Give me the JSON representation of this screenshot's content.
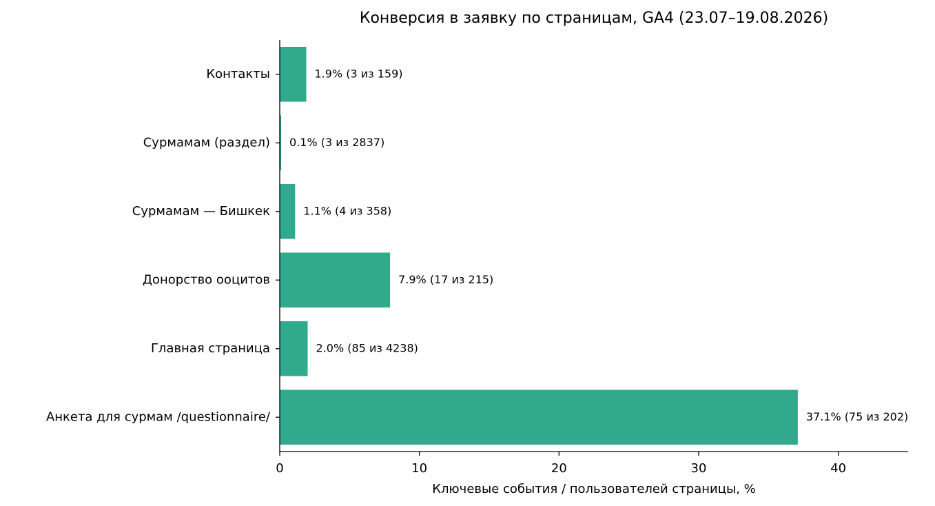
{
  "chart_data": {
    "type": "bar",
    "orientation": "horizontal",
    "title": "Конверсия в заявку по страницам, GA4 (23.07–19.08.2026)",
    "xlabel": "Ключевые события / пользователей страницы, %",
    "ylabel": "",
    "xlim": [
      0,
      45
    ],
    "xticks": [
      0,
      10,
      20,
      30,
      40
    ],
    "grid": false,
    "bar_color": "#31a98d",
    "categories": [
      "Анкета для сурмам /questionnaire/",
      "Главная страница",
      "Донорство ооцитов",
      "Сурмамам — Бишкек",
      "Сурмамам (раздел)",
      "Контакты"
    ],
    "values": [
      37.1,
      2.0,
      7.9,
      1.1,
      0.1,
      1.9
    ],
    "data_labels": [
      "37.1% (75 из 202)",
      "2.0% (85 из 4238)",
      "7.9% (17 из 215)",
      "1.1% (4 из 358)",
      "0.1% (3 из 2837)",
      "1.9% (3 из 159)"
    ]
  }
}
